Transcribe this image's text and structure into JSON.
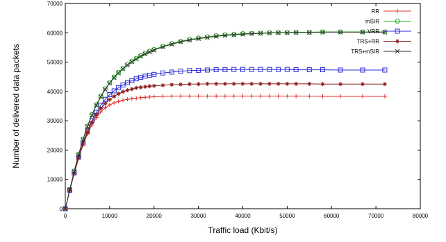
{
  "chart_data": {
    "type": "line",
    "title": "",
    "xlabel": "Traffic load (Kbit/s)",
    "ylabel": "Number of delivered data packets",
    "xlim": [
      0,
      80000
    ],
    "ylim": [
      0,
      70000
    ],
    "xticks": [
      0,
      10000,
      20000,
      30000,
      40000,
      50000,
      60000,
      70000,
      80000
    ],
    "yticks": [
      0,
      10000,
      20000,
      30000,
      40000,
      50000,
      60000,
      70000
    ],
    "grid": false,
    "legend_position": "top-right",
    "x": [
      0,
      1000,
      2000,
      3000,
      4000,
      5000,
      6000,
      7000,
      8000,
      9000,
      10000,
      11000,
      12000,
      13000,
      14000,
      15000,
      16000,
      17000,
      18000,
      19000,
      20000,
      22000,
      24000,
      26000,
      28000,
      30000,
      32000,
      34000,
      36000,
      38000,
      40000,
      42000,
      44000,
      46000,
      48000,
      50000,
      52000,
      55000,
      58000,
      62000,
      67000,
      72000
    ],
    "series": [
      {
        "name": "RR",
        "color": "#e0302a",
        "marker": "plus",
        "values": [
          0,
          6200,
          12000,
          17200,
          21700,
          25500,
          28600,
          31100,
          33000,
          34400,
          35400,
          36100,
          36600,
          37000,
          37300,
          37500,
          37700,
          37900,
          38000,
          38100,
          38200,
          38300,
          38400,
          38400,
          38400,
          38400,
          38400,
          38400,
          38400,
          38400,
          38400,
          38400,
          38400,
          38400,
          38400,
          38400,
          38400,
          38400,
          38300,
          38300,
          38300,
          38300
        ]
      },
      {
        "name": "mSIR",
        "color": "#1fa81f",
        "marker": "circle",
        "values": [
          0,
          6600,
          12900,
          18600,
          23700,
          28200,
          32100,
          35500,
          38400,
          40900,
          43000,
          44900,
          46500,
          47900,
          49200,
          50300,
          51300,
          52200,
          53000,
          53700,
          54300,
          55400,
          56300,
          57100,
          57700,
          58200,
          58600,
          59000,
          59300,
          59500,
          59700,
          59800,
          59900,
          60000,
          60100,
          60100,
          60200,
          60200,
          60300,
          60300,
          60300,
          60300
        ]
      },
      {
        "name": "VRR",
        "color": "#2b2bd6",
        "marker": "square",
        "values": [
          0,
          6300,
          12200,
          17600,
          22400,
          26500,
          30000,
          32900,
          35300,
          37300,
          38900,
          40200,
          41300,
          42200,
          43000,
          43700,
          44300,
          44800,
          45200,
          45500,
          45800,
          46300,
          46600,
          46900,
          47100,
          47200,
          47300,
          47400,
          47400,
          47500,
          47500,
          47500,
          47500,
          47500,
          47500,
          47500,
          47400,
          47400,
          47400,
          47300,
          47300,
          47300
        ]
      },
      {
        "name": "TRS+RR",
        "color": "#8b1a1a",
        "marker": "asterisk",
        "values": [
          0,
          6300,
          12100,
          17400,
          22100,
          26100,
          29400,
          32100,
          34200,
          35900,
          37200,
          38300,
          39200,
          39900,
          40400,
          40800,
          41200,
          41400,
          41600,
          41800,
          41900,
          42100,
          42300,
          42400,
          42500,
          42500,
          42600,
          42600,
          42600,
          42600,
          42600,
          42600,
          42600,
          42600,
          42600,
          42600,
          42600,
          42600,
          42500,
          42500,
          42500,
          42500
        ]
      },
      {
        "name": "TRS+mSIR",
        "color": "#333333",
        "marker": "cross",
        "values": [
          0,
          6500,
          12700,
          18400,
          23500,
          28000,
          31900,
          35300,
          38200,
          40700,
          42800,
          44700,
          46300,
          47700,
          49000,
          50100,
          51100,
          52000,
          52800,
          53500,
          54100,
          55200,
          56100,
          56900,
          57500,
          58000,
          58400,
          58800,
          59100,
          59300,
          59500,
          59700,
          59800,
          59900,
          60000,
          60000,
          60100,
          60100,
          60200,
          60200,
          60200,
          60200
        ]
      }
    ]
  }
}
